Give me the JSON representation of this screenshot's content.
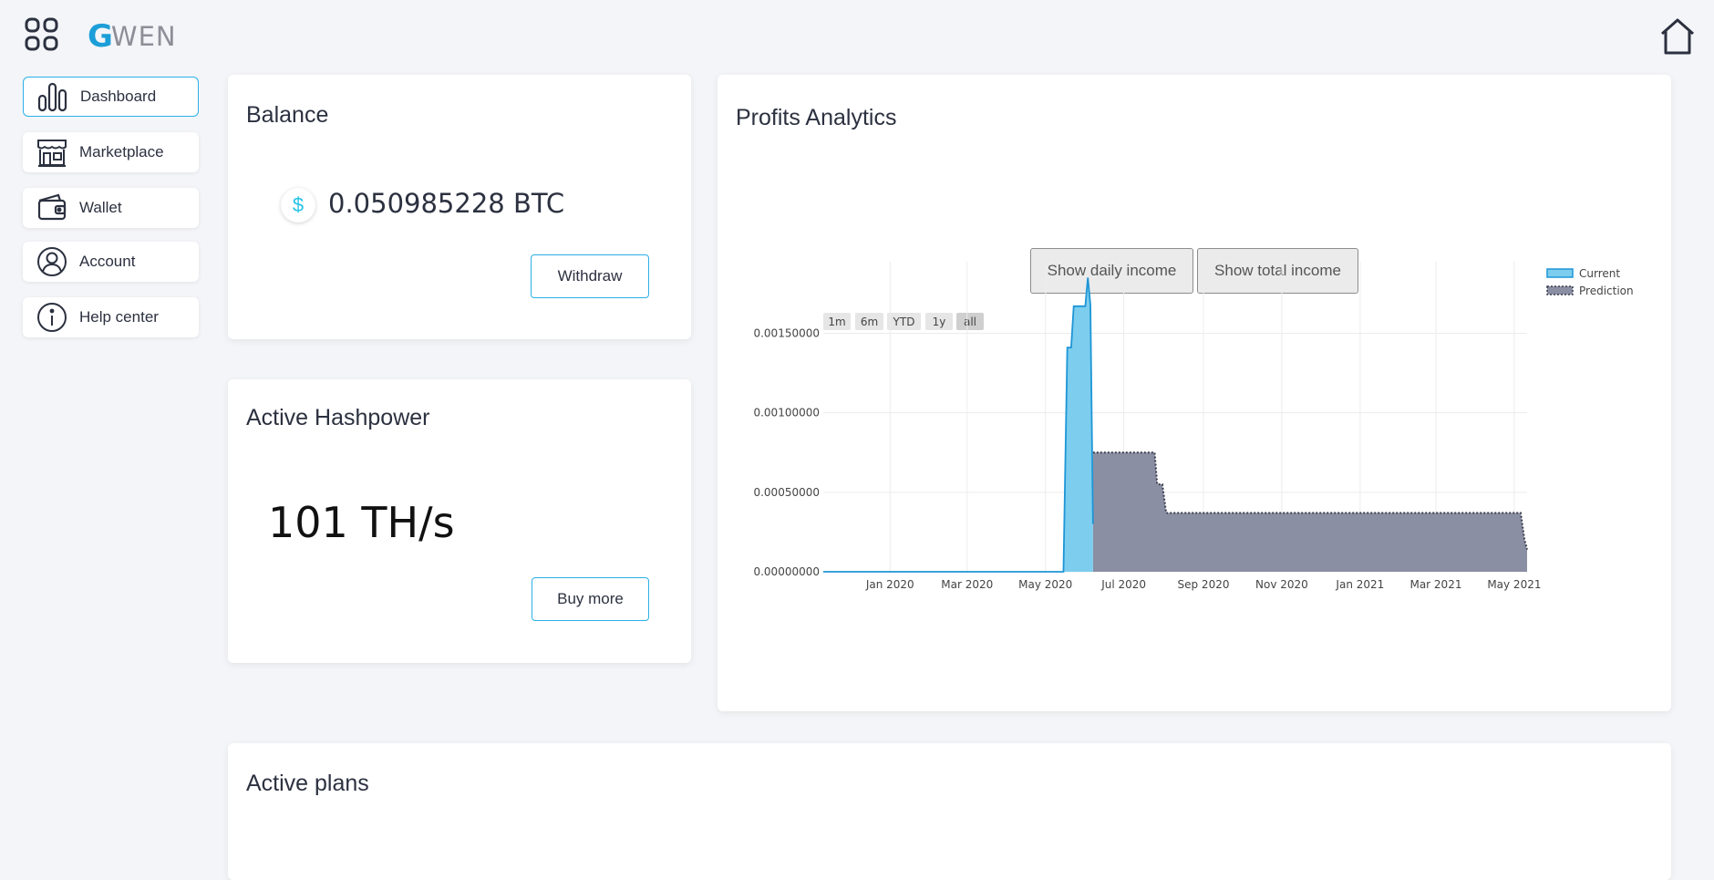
{
  "header": {
    "logo_g": "G",
    "logo_rest": "WEN",
    "apps_icon": "apps-grid-icon",
    "home_icon": "home-icon"
  },
  "sidebar": {
    "items": [
      {
        "label": "Dashboard",
        "icon": "bar-chart-icon",
        "active": true
      },
      {
        "label": "Marketplace",
        "icon": "storefront-icon",
        "active": false
      },
      {
        "label": "Wallet",
        "icon": "wallet-icon",
        "active": false
      },
      {
        "label": "Account",
        "icon": "user-circle-icon",
        "active": false
      },
      {
        "label": "Help center",
        "icon": "info-icon",
        "active": false
      }
    ]
  },
  "balance": {
    "title": "Balance",
    "coin_symbol": "$",
    "value": "0.050985228 BTC",
    "withdraw_label": "Withdraw"
  },
  "hashpower": {
    "title": "Active Hashpower",
    "value": "101 TH/s",
    "buy_label": "Buy more"
  },
  "profits": {
    "title": "Profits Analytics",
    "daily_label": "Show daily income",
    "total_label": "Show total income",
    "ranges": [
      "1m",
      "6m",
      "YTD",
      "1y",
      "all"
    ],
    "selected_range": "all"
  },
  "plans": {
    "title": "Active plans"
  },
  "colors": {
    "accent": "#2bb0e8",
    "current_fill": "#7ccdee",
    "current_line": "#1e96d6",
    "prediction_fill": "#8b8fa3",
    "prediction_line": "#3a3d4e"
  },
  "chart_data": {
    "type": "area",
    "x_ticks": [
      "Jan 2020",
      "Mar 2020",
      "May 2020",
      "Jul 2020",
      "Sep 2020",
      "Nov 2020",
      "Jan 2021",
      "Mar 2021",
      "May 2021"
    ],
    "y_ticks": [
      "0.00000000",
      "0.00050000",
      "0.00100000",
      "0.00150000"
    ],
    "ylim": [
      0,
      0.00195
    ],
    "grid": true,
    "legend_position": "top-right",
    "series": [
      {
        "name": "Current",
        "points": [
          [
            "2019-11-10",
            0
          ],
          [
            "2020-05-15",
            0
          ],
          [
            "2020-05-18",
            0.00141
          ],
          [
            "2020-05-21",
            0.00141
          ],
          [
            "2020-05-23",
            0.00167
          ],
          [
            "2020-06-01",
            0.00167
          ],
          [
            "2020-06-03",
            0.00185
          ],
          [
            "2020-06-05",
            0.00168
          ],
          [
            "2020-06-07",
            0.0003
          ]
        ]
      },
      {
        "name": "Prediction",
        "points": [
          [
            "2020-06-07",
            0.00075
          ],
          [
            "2020-07-25",
            0.00075
          ],
          [
            "2020-07-27",
            0.00055
          ],
          [
            "2020-07-31",
            0.00055
          ],
          [
            "2020-08-03",
            0.00037
          ],
          [
            "2021-05-06",
            0.00037
          ],
          [
            "2021-05-09",
            0.0002
          ],
          [
            "2021-05-11",
            0.00014
          ]
        ]
      }
    ]
  }
}
